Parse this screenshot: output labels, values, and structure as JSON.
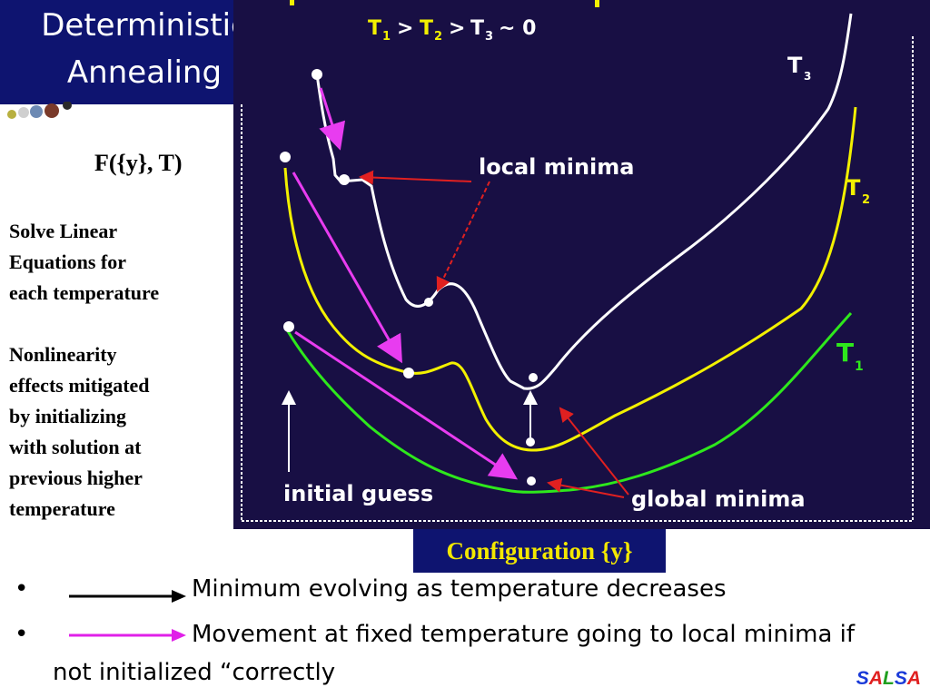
{
  "title": {
    "line1": "Deterministic",
    "line2": "Annealing"
  },
  "function_label": "F({y}, T)",
  "side_text": {
    "line1": "Solve Linear",
    "line2": "Equations for",
    "line3": "each temperature",
    "line4": "Nonlinearity",
    "line5": "effects mitigated",
    "line6": "by initializing",
    "line7": "with solution at",
    "line8": "previous higher",
    "line9": "temperature"
  },
  "plot": {
    "temp_order": {
      "t1": "T",
      "s1": "1",
      "gt1": ">",
      "t2": "T",
      "s2": "2",
      "gt2": ">",
      "t3": "T",
      "s3": "3",
      "approx": "~ 0"
    },
    "curve_labels": {
      "t3": {
        "letter": "T",
        "sub": "3"
      },
      "t2": {
        "letter": "T",
        "sub": "2"
      },
      "t1": {
        "letter": "T",
        "sub": "1"
      }
    },
    "annotations": {
      "local_minima": "local minima",
      "global_minima": "global minima",
      "initial_guess": "initial guess"
    },
    "colors": {
      "background": "#180f44",
      "t3_curve": "#ffffff",
      "t2_curve": "#f2f000",
      "t1_curve": "#2ee81c",
      "pink_arrow": "#e83cf0",
      "red_arrow": "#e02020"
    }
  },
  "x_axis_label": "Configuration {y}",
  "bullets": [
    {
      "marker": "•",
      "arrow_color": "#000000",
      "text": "Minimum evolving as temperature decreases"
    },
    {
      "marker": "•",
      "arrow_color": "#e020e8",
      "text": "Movement at fixed temperature going to local minima if",
      "continuation": "not initialized “correctly"
    }
  ],
  "logo": {
    "s1": "S",
    "a1": "A",
    "l": "L",
    "s2": "S",
    "a2": "A"
  }
}
